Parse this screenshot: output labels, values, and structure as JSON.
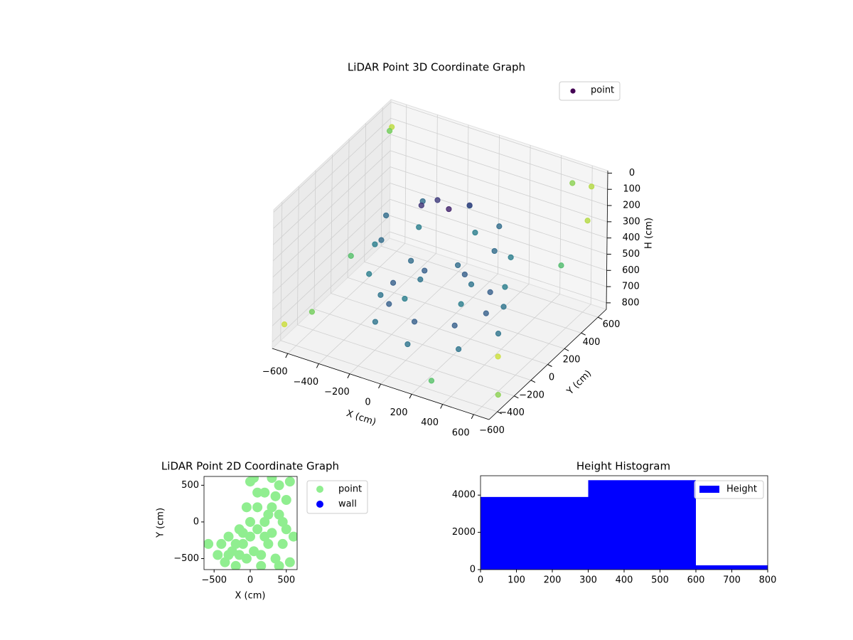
{
  "chart_data": [
    {
      "type": "scatter3d",
      "title": "LiDAR Point 3D Coordinate Graph",
      "xlabel": "X (cm)",
      "ylabel": "Y (cm)",
      "zlabel": "H (cm)",
      "xlim": [
        -700,
        700
      ],
      "ylim": [
        -700,
        700
      ],
      "zlim": [
        -15,
        840
      ],
      "zinverted": true,
      "xticks": [
        {
          "value": -600,
          "label": "−600"
        },
        {
          "value": -400,
          "label": "−400"
        },
        {
          "value": -200,
          "label": "−200"
        },
        0,
        200,
        400,
        600
      ],
      "yticks": [
        {
          "value": -600,
          "label": "−600"
        },
        {
          "value": -400,
          "label": "−400"
        },
        {
          "value": -200,
          "label": "−200"
        },
        0,
        200,
        400,
        600
      ],
      "zticks": [
        0,
        100,
        200,
        300,
        400,
        500,
        600,
        700,
        800
      ],
      "colormap": "viridis",
      "legend": "upper right",
      "grid": true,
      "series": [
        {
          "name": "point",
          "color": "#440154",
          "x": [
            350,
            247,
            0,
            -247,
            -350,
            -247,
            0,
            247,
            420,
            297,
            0,
            -297,
            -420,
            -297,
            0,
            297,
            300,
            212,
            0,
            -212,
            -300,
            -212,
            0,
            212,
            380,
            269,
            0,
            -269,
            -380,
            -269,
            0,
            269,
            -100,
            0,
            80,
            -150,
            650,
            600,
            -650,
            -600,
            700,
            -650,
            650,
            500,
            -500,
            620,
            -680,
            300
          ],
          "y": [
            0,
            247,
            350,
            247,
            0,
            -247,
            -350,
            -247,
            0,
            297,
            420,
            297,
            0,
            -297,
            -420,
            -297,
            0,
            212,
            300,
            212,
            0,
            -212,
            -300,
            -212,
            0,
            269,
            380,
            269,
            0,
            -269,
            -380,
            -269,
            150,
            100,
            200,
            50,
            600,
            650,
            620,
            500,
            -600,
            -650,
            -500,
            650,
            -600,
            300,
            200,
            -650
          ],
          "z": [
            250,
            250,
            250,
            250,
            250,
            250,
            250,
            250,
            450,
            450,
            450,
            450,
            450,
            450,
            450,
            450,
            650,
            650,
            650,
            650,
            650,
            650,
            650,
            650,
            750,
            750,
            750,
            750,
            750,
            750,
            750,
            750,
            150,
            150,
            150,
            150,
            50,
            300,
            100,
            50,
            500,
            700,
            800,
            100,
            600,
            400,
            700,
            750
          ]
        }
      ]
    },
    {
      "type": "scatter",
      "title": "LiDAR Point 2D Coordinate Graph",
      "xlabel": "X (cm)",
      "ylabel": "Y (cm)",
      "xlim": [
        -640,
        650
      ],
      "ylim": [
        -650,
        620
      ],
      "xticks": [
        {
          "value": -500,
          "label": "−500"
        },
        0,
        500
      ],
      "yticks": [
        {
          "value": -500,
          "label": "−500"
        },
        0,
        500
      ],
      "legend": "outside right",
      "series": [
        {
          "name": "point",
          "color": "#90ee90",
          "x": [
            -580,
            -450,
            -400,
            -350,
            -300,
            -250,
            -200,
            -150,
            -100,
            -50,
            0,
            0,
            50,
            100,
            100,
            150,
            200,
            200,
            250,
            300,
            300,
            300,
            350,
            400,
            400,
            450,
            500,
            500,
            550,
            550,
            -50,
            -100,
            150,
            250,
            350,
            450,
            -300,
            0,
            50,
            -200,
            400,
            600,
            100,
            200,
            -150
          ],
          "y": [
            -300,
            -450,
            -300,
            -550,
            -200,
            -400,
            -600,
            -100,
            -300,
            -500,
            0,
            -200,
            -400,
            200,
            -100,
            -600,
            400,
            0,
            -300,
            600,
            200,
            -150,
            -500,
            500,
            100,
            -300,
            300,
            -100,
            -550,
            550,
            200,
            -150,
            -450,
            100,
            350,
            0,
            -450,
            550,
            600,
            -300,
            -600,
            -200,
            400,
            -200,
            -450
          ]
        },
        {
          "name": "wall",
          "color": "#0000ff",
          "x": [],
          "y": []
        }
      ]
    },
    {
      "type": "histogram",
      "title": "Height Histogram",
      "bins": [
        0,
        300,
        600,
        800
      ],
      "series": [
        {
          "name": "Height",
          "color": "#0000ff",
          "values": [
            3900,
            4800,
            230
          ]
        }
      ],
      "xlim": [
        0,
        800
      ],
      "ylim": [
        0,
        5040
      ],
      "xticks": [
        0,
        100,
        200,
        300,
        400,
        500,
        600,
        700,
        800
      ],
      "yticks": [
        0,
        2000,
        4000
      ],
      "legend": "upper right"
    }
  ]
}
